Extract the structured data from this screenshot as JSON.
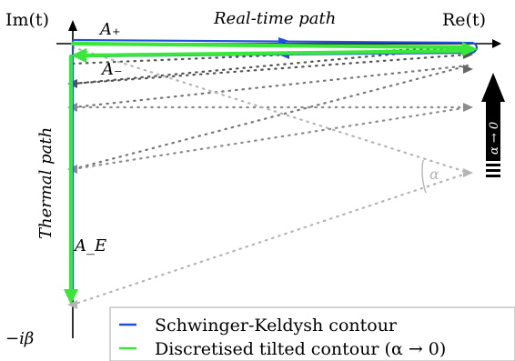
{
  "axes": {
    "im_label": "Im(t)",
    "re_label": "Re(t)",
    "beta_label": "−iβ"
  },
  "labels": {
    "real_time_path": "Real-time path",
    "thermal_path": "Thermal path",
    "a_plus": "A₊",
    "a_minus": "A₋",
    "a_e": "A_E",
    "alpha": "α",
    "alpha_limit": "α → 0"
  },
  "legend": {
    "items": [
      {
        "label": "Schwinger-Keldysh contour",
        "color": "#1f4fe0"
      },
      {
        "label": "Discretised tilted contour (α → 0)",
        "color": "#39e639"
      }
    ]
  },
  "colors": {
    "sk": "#1f4fe0",
    "tilted": "#39e639",
    "dark_gray": "#555555",
    "mid_gray": "#888888",
    "light_gray": "#b5b5b5",
    "arrow": "#000000"
  }
}
